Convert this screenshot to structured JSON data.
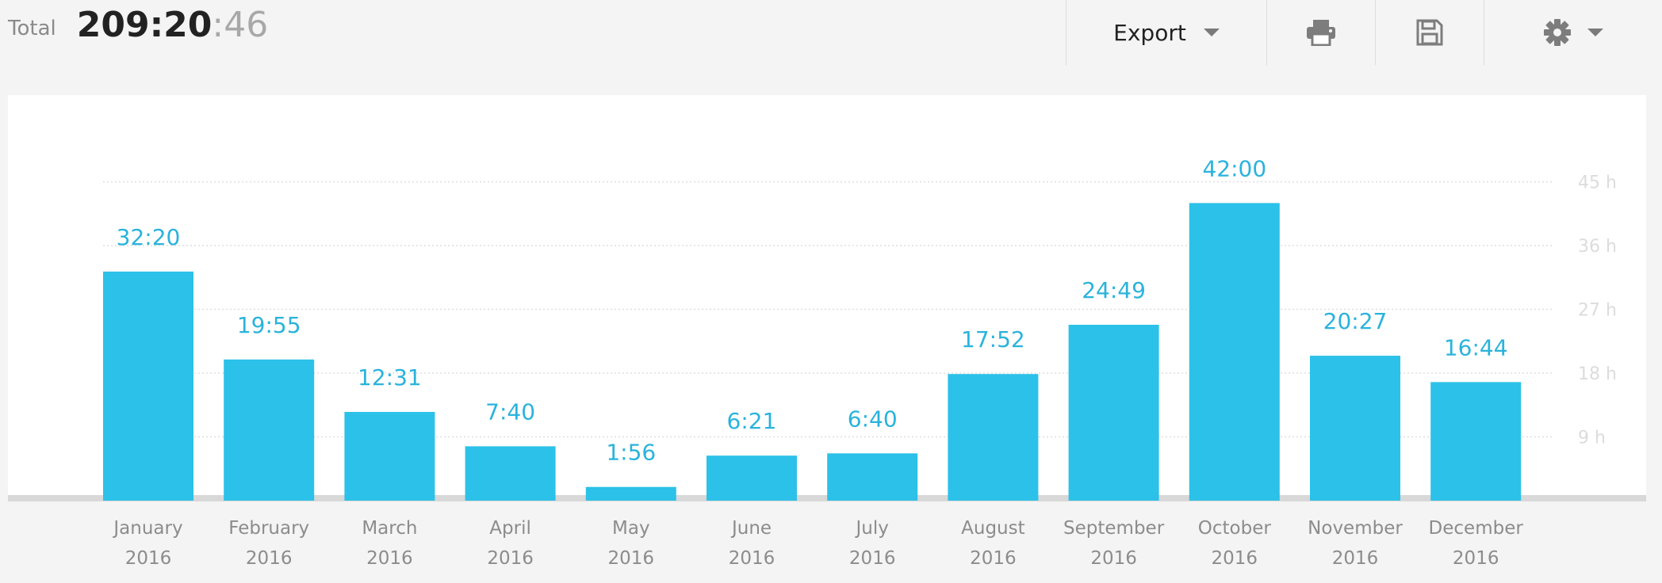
{
  "header": {
    "total_label": "Total",
    "total_main": "209:20",
    "total_seconds": ":46"
  },
  "toolbar": {
    "export_label": "Export",
    "icons": [
      "print-icon",
      "save-icon",
      "gear-icon"
    ]
  },
  "colors": {
    "bar": "#2cc1e8",
    "bar_label": "#2ab3dc",
    "axis_label": "#dcdcdc",
    "tick_label": "#8c8c8c"
  },
  "chart_data": {
    "type": "bar",
    "categories": [
      [
        "January",
        "2016"
      ],
      [
        "February",
        "2016"
      ],
      [
        "March",
        "2016"
      ],
      [
        "April",
        "2016"
      ],
      [
        "May",
        "2016"
      ],
      [
        "June",
        "2016"
      ],
      [
        "July",
        "2016"
      ],
      [
        "August",
        "2016"
      ],
      [
        "September",
        "2016"
      ],
      [
        "October",
        "2016"
      ],
      [
        "November",
        "2016"
      ],
      [
        "December",
        "2016"
      ]
    ],
    "values": [
      32.33,
      19.92,
      12.52,
      7.67,
      1.93,
      6.35,
      6.67,
      17.87,
      24.82,
      42.0,
      20.45,
      16.73
    ],
    "value_labels": [
      "32:20",
      "19:55",
      "12:31",
      "7:40",
      "1:56",
      "6:21",
      "6:40",
      "17:52",
      "24:49",
      "42:00",
      "20:27",
      "16:44"
    ],
    "y_ticks": [
      9,
      18,
      27,
      36,
      45
    ],
    "y_tick_labels": [
      "9 h",
      "18 h",
      "27 h",
      "36 h",
      "45 h"
    ],
    "ylim": [
      0,
      45
    ],
    "grid": true,
    "y_axis_side": "right"
  }
}
